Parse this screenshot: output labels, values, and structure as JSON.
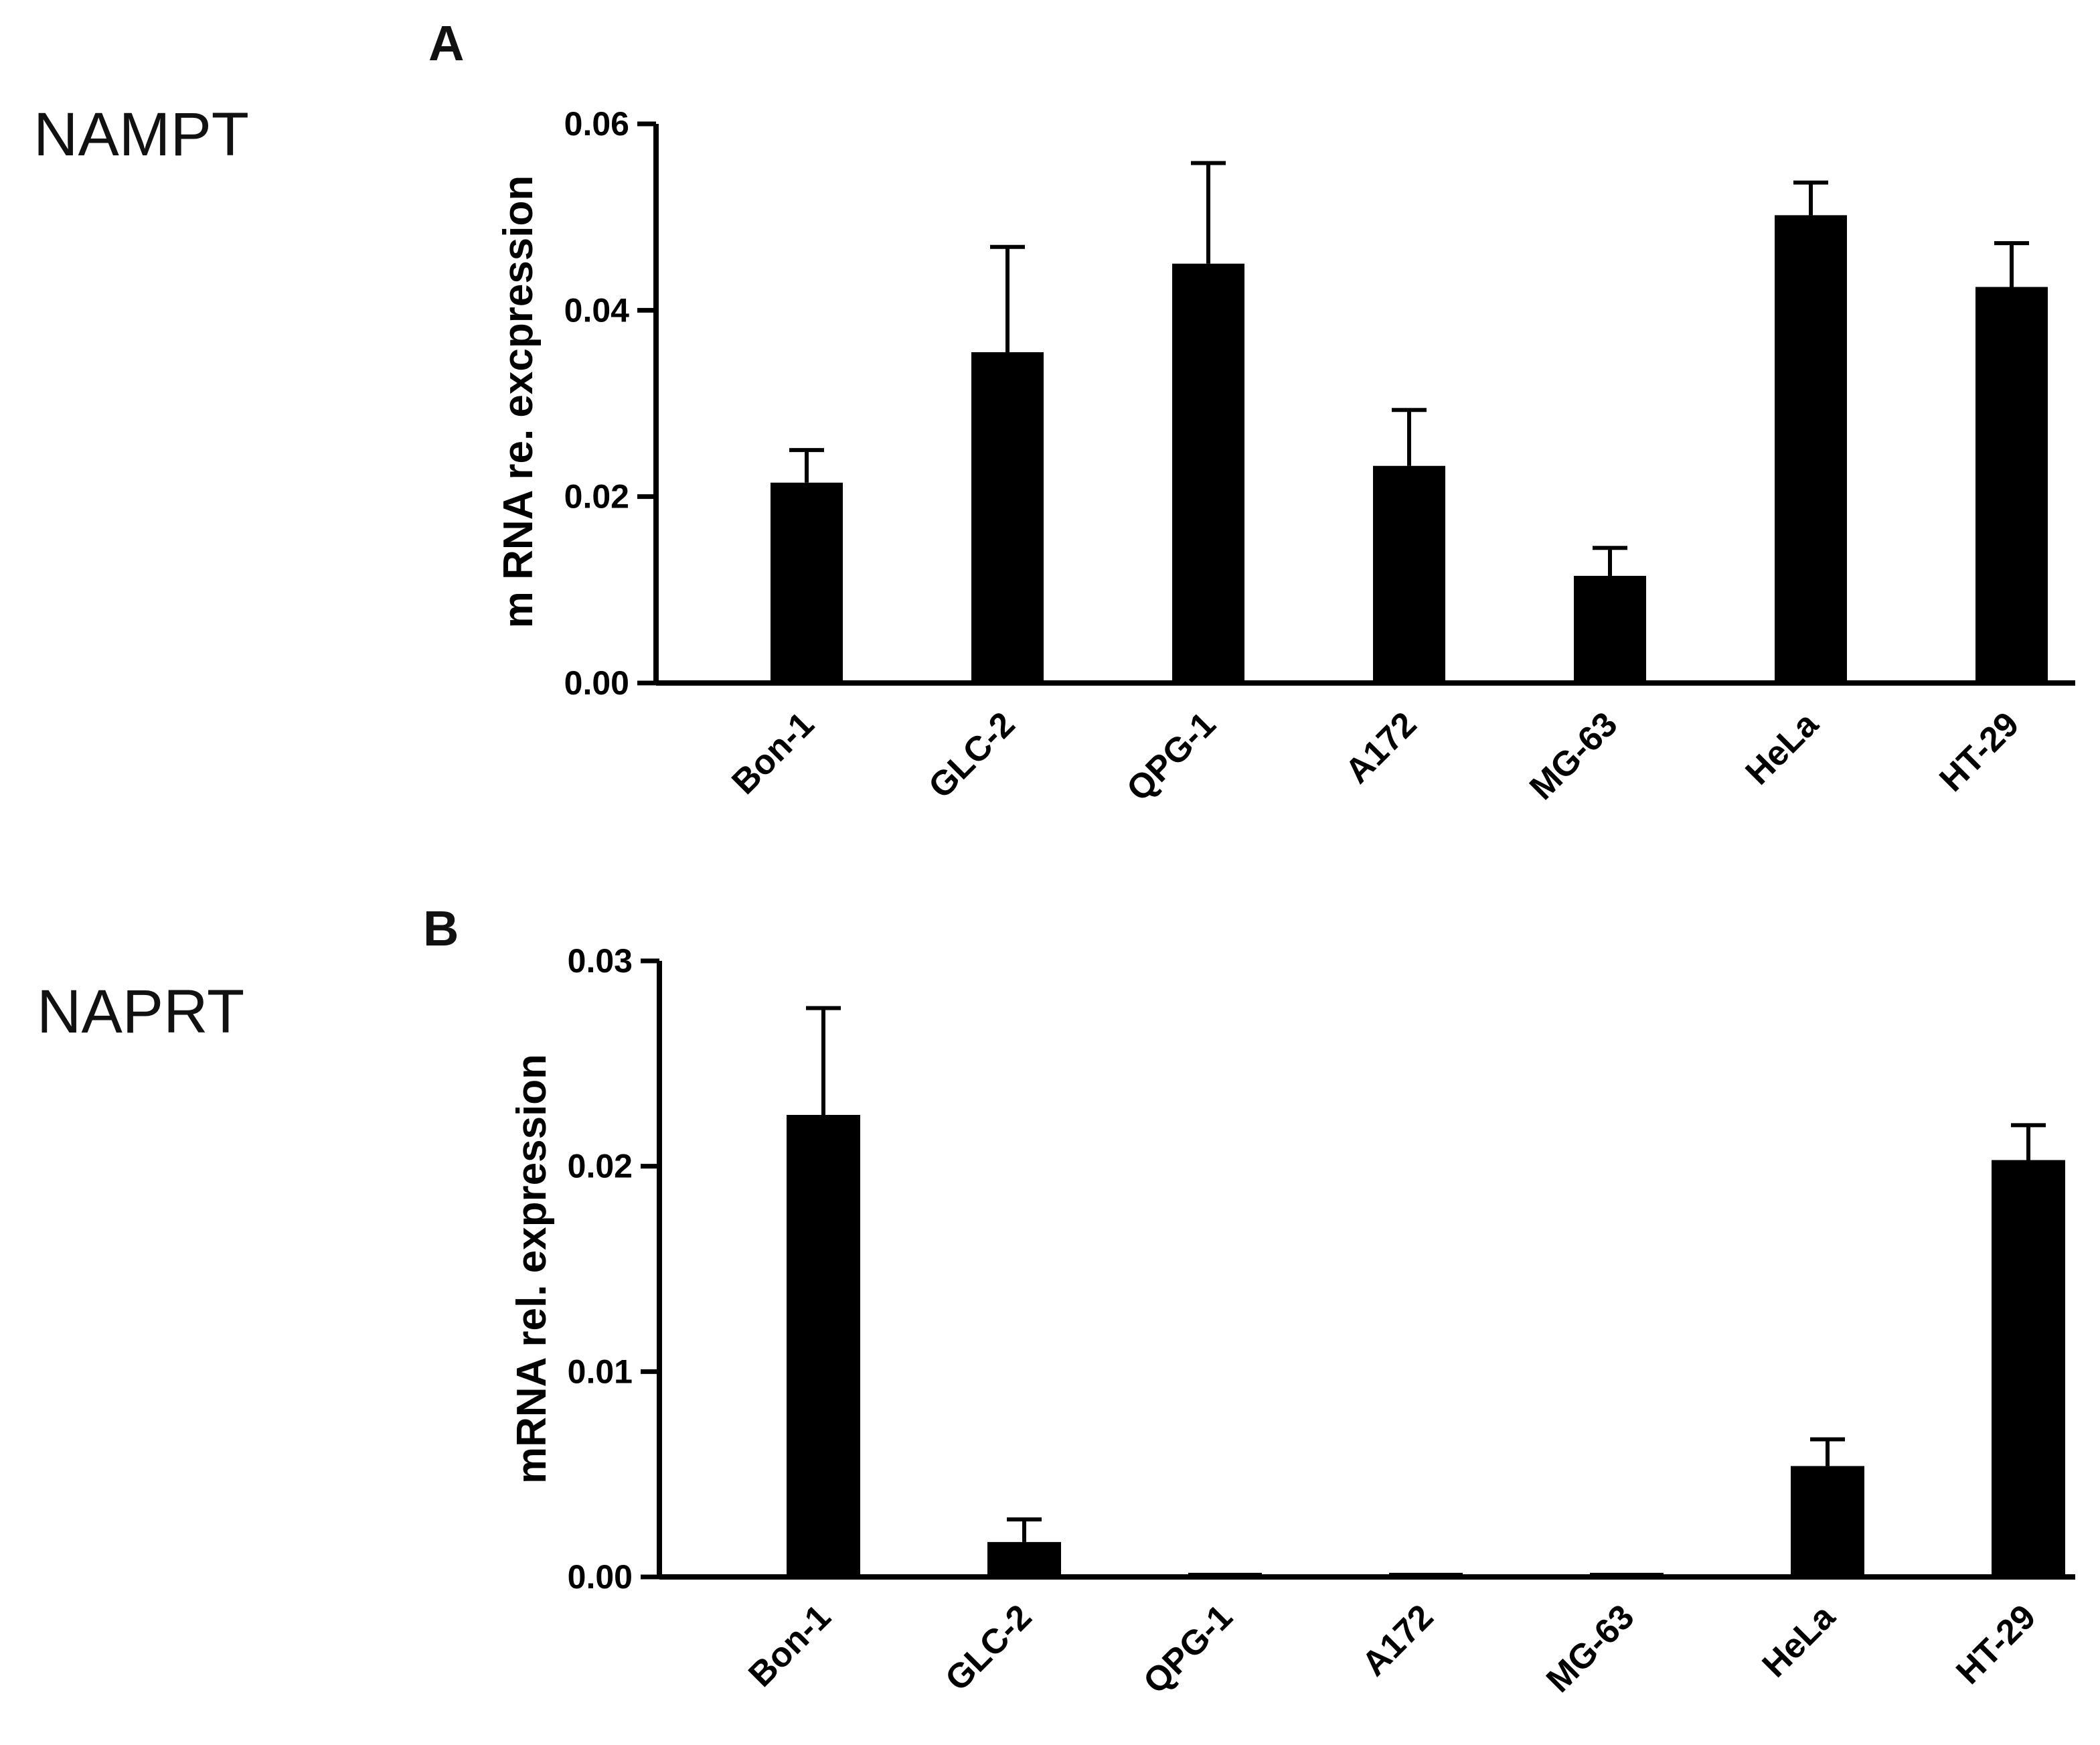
{
  "chart_data": [
    {
      "type": "bar",
      "gene": "NAMPT",
      "panel": "A",
      "ylabel": "m RNA re. excpression",
      "xlabel": "",
      "ylim": [
        0,
        0.06
      ],
      "yticks": [
        "0.00",
        "0.02",
        "0.04",
        "0.06"
      ],
      "ytick_values": [
        0,
        0.02,
        0.04,
        0.06
      ],
      "categories": [
        "Bon-1",
        "GLC-2",
        "QPG-1",
        "A172",
        "MG-63",
        "HeLa",
        "HT-29"
      ],
      "values": [
        0.0215,
        0.0355,
        0.045,
        0.0233,
        0.0115,
        0.0502,
        0.0425
      ],
      "errors": [
        0.0035,
        0.0113,
        0.0108,
        0.006,
        0.003,
        0.0035,
        0.0047
      ],
      "bar_color": "#000000"
    },
    {
      "type": "bar",
      "gene": "NAPRT",
      "panel": "B",
      "ylabel": "mRNA rel. expression",
      "xlabel": "",
      "ylim": [
        0,
        0.03
      ],
      "yticks": [
        "0.00",
        "0.01",
        "0.02",
        "0.03"
      ],
      "ytick_values": [
        0,
        0.01,
        0.02,
        0.03
      ],
      "categories": [
        "Bon-1",
        "GLC-2",
        "QPG-1",
        "A172",
        "MG-63",
        "HeLa",
        "HT-29"
      ],
      "values": [
        0.0225,
        0.0017,
        0.0002,
        0.0002,
        0.0002,
        0.0054,
        0.0203
      ],
      "errors": [
        0.0052,
        0.0011,
        0,
        0,
        0,
        0.0013,
        0.0017
      ],
      "bar_color": "#000000"
    }
  ]
}
